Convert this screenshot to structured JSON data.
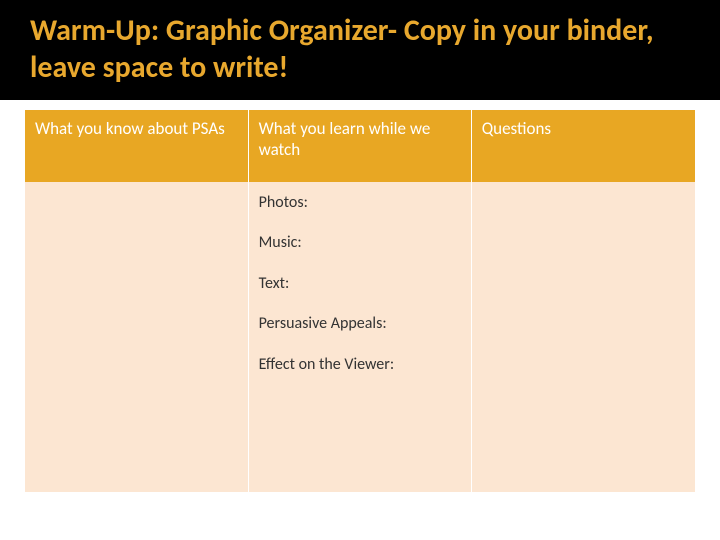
{
  "title": "Warm-Up: Graphic Organizer- Copy in your binder, leave space to write!",
  "title_color": "#e8a82e",
  "title_bg": "#000000",
  "table": {
    "header_bg": "#e8a723",
    "header_text_color": "#ffffff",
    "cell_bg": "#fce6d2",
    "cell_text_color": "#333333",
    "columns": [
      "What you know about PSAs",
      "What you learn while we watch",
      "Questions"
    ],
    "rows": [
      {
        "col1": "",
        "col2_items": [
          "Photos:",
          "Music:",
          "Text:",
          "Persuasive Appeals:",
          "Effect on the Viewer:"
        ],
        "col3": ""
      }
    ]
  }
}
